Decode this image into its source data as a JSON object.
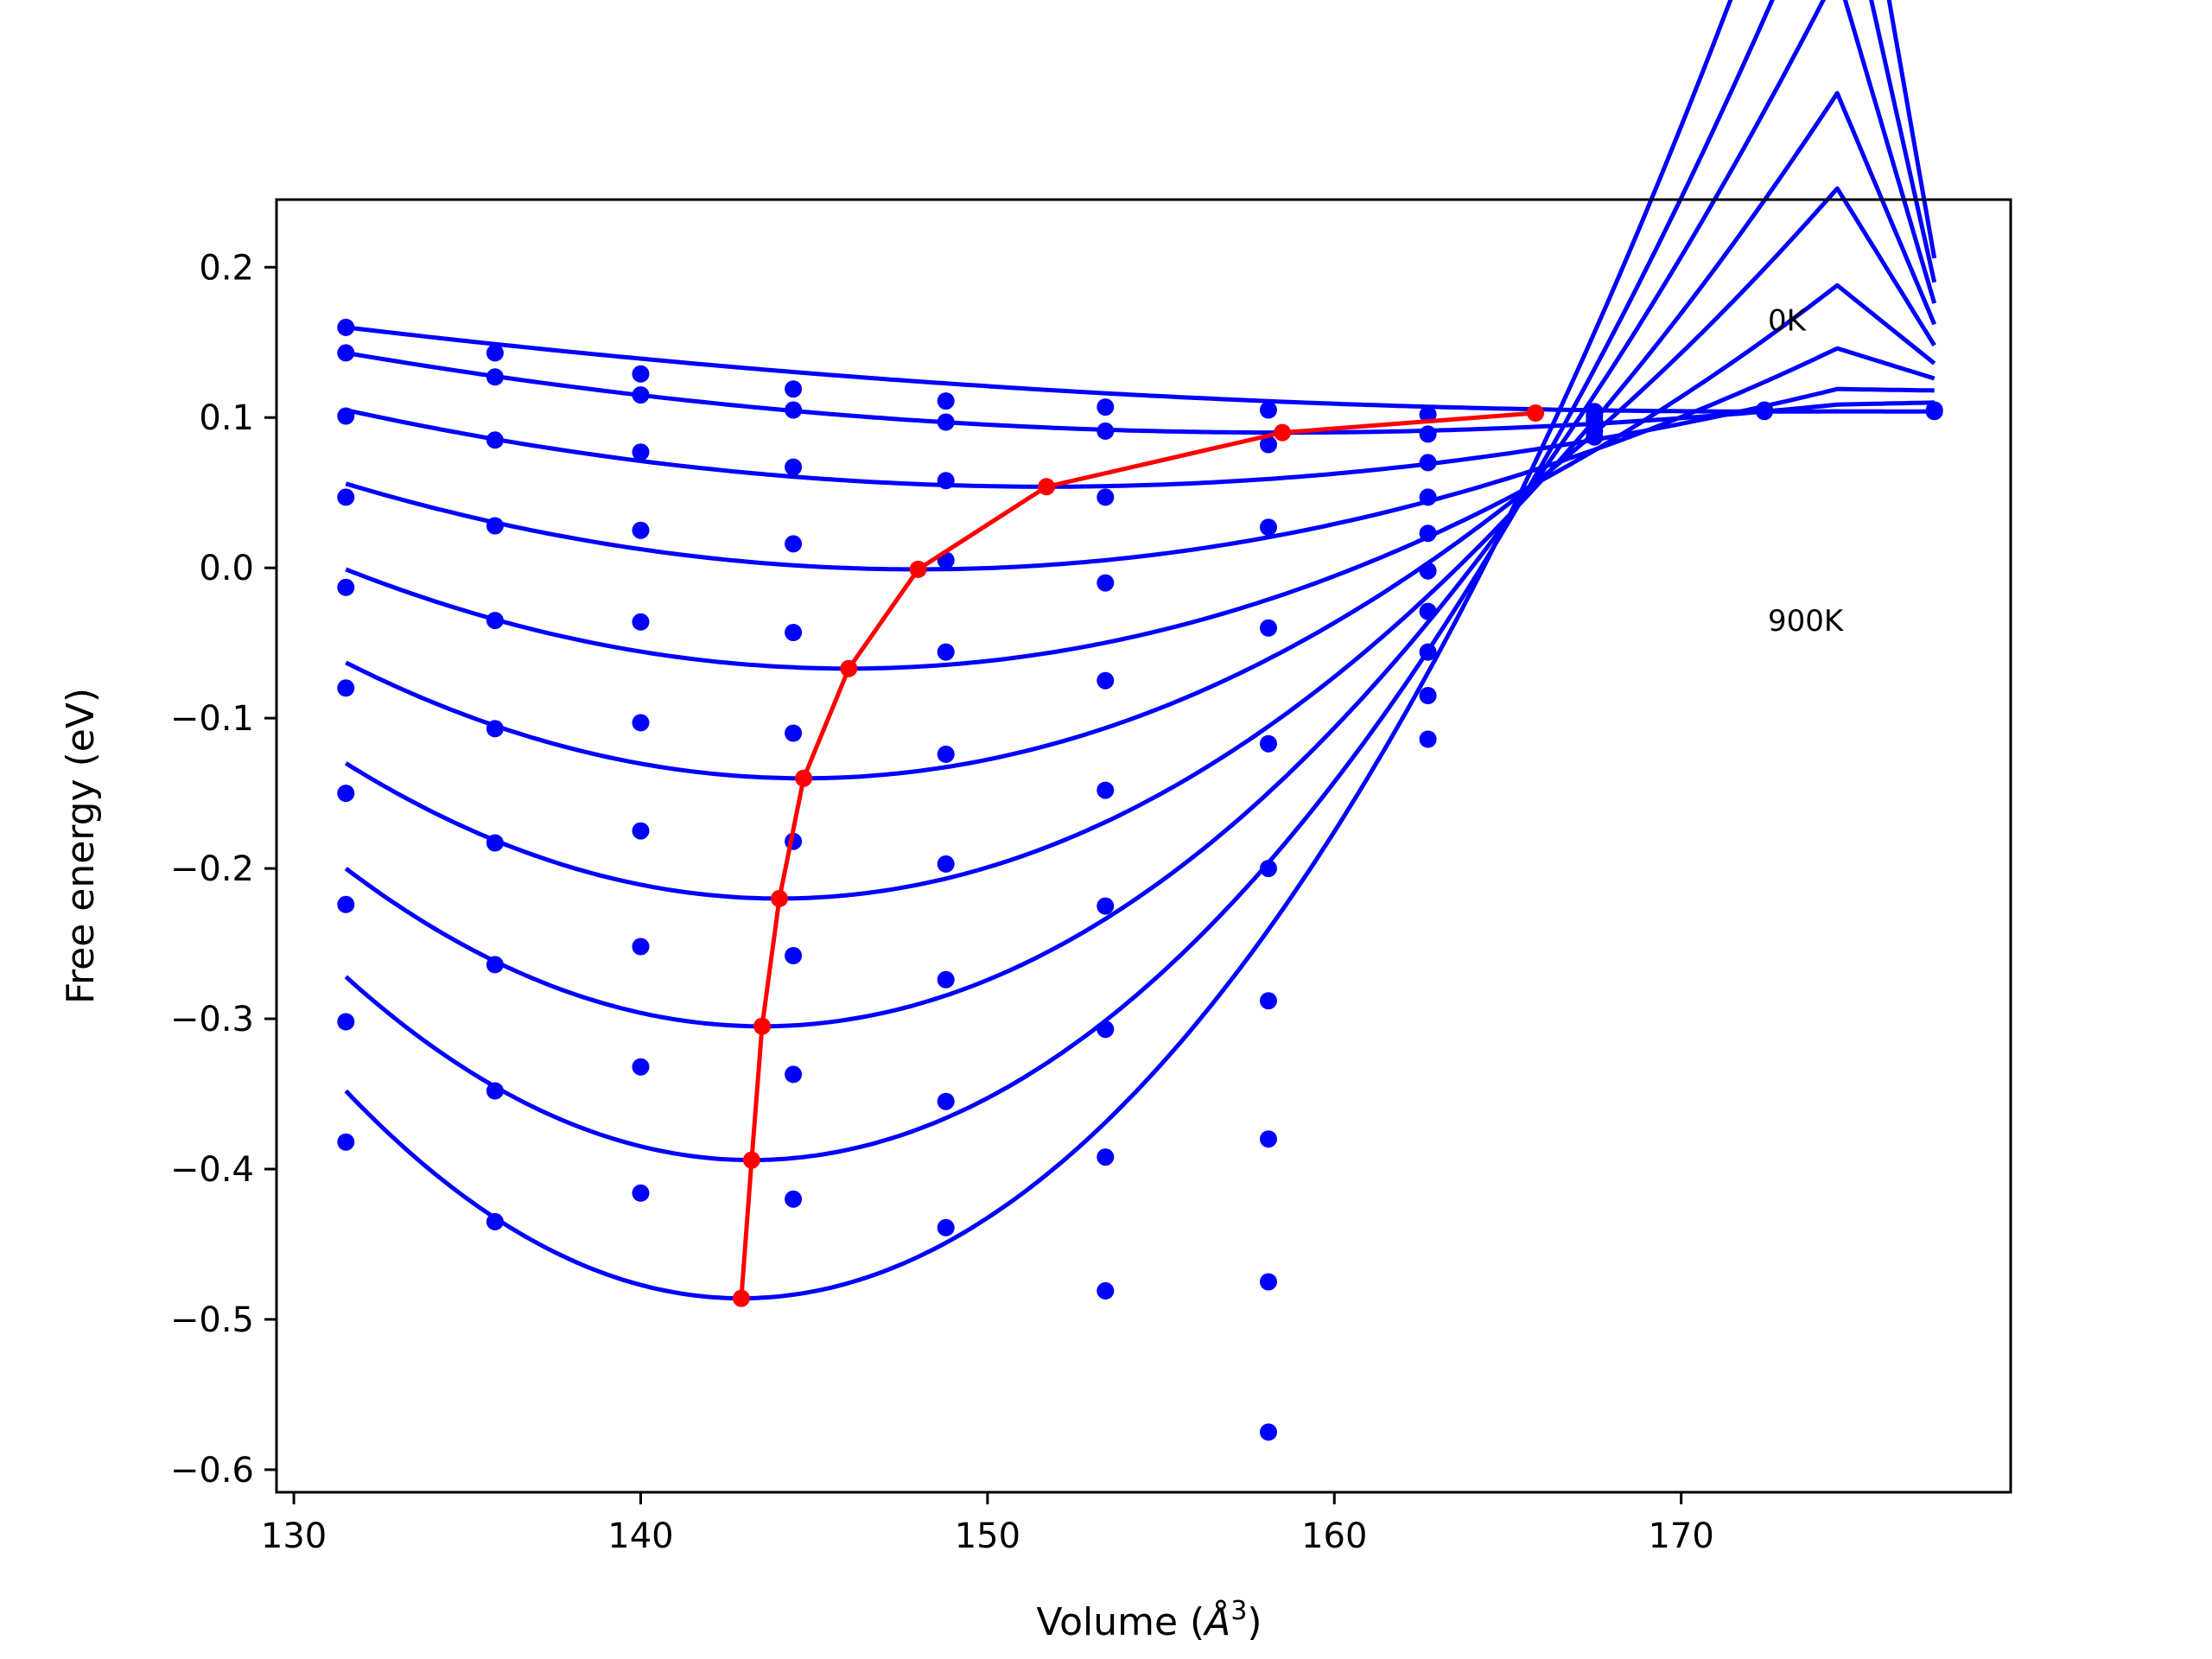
{
  "chart_data": {
    "type": "line",
    "title": "",
    "xlabel": "Volume (",
    "xlabel_symbol": "Å",
    "xlabel_exp": "3",
    "xlabel_close": ")",
    "ylabel": "Free energy (eV)",
    "xlim": [
      129.5,
      179.5
    ],
    "ylim": [
      -0.615,
      0.245
    ],
    "xticks": [
      130,
      140,
      150,
      160,
      170
    ],
    "xtick_labels": [
      "130",
      "140",
      "150",
      "160",
      "170"
    ],
    "yticks": [
      0.2,
      0.1,
      0.0,
      -0.1,
      -0.2,
      -0.3,
      -0.4,
      -0.5,
      -0.6
    ],
    "ytick_labels": [
      "0.2",
      "0.1",
      "0.0",
      "−0.1",
      "−0.2",
      "−0.3",
      "−0.4",
      "−0.5",
      "−0.6"
    ],
    "annotations": [
      {
        "text": "0K",
        "x": 172.5,
        "y": 0.158
      },
      {
        "text": "900K",
        "x": 172.5,
        "y": -0.042
      }
    ],
    "grid": false,
    "colors": {
      "fit_curves": "#0000ff",
      "points": "#0000ff",
      "minimum_path": "#ff0000"
    },
    "x_range": [
      131.5,
      177.3
    ],
    "fit_curves": [
      {
        "v0": 174.5,
        "f0": 0.1,
        "E": [
          172.5,
          0.104
        ],
        "V": [
          131.5,
          0.16
        ]
      },
      {
        "v0": 174.5,
        "f0": 0.1,
        "E": [
          158.5,
          0.09
        ],
        "V": [
          131.5,
          0.143
        ]
      },
      {
        "v0": 174.5,
        "f0": 0.1,
        "E": [
          151.7,
          0.054
        ],
        "V": [
          131.5,
          0.105
        ]
      },
      {
        "v0": 174.5,
        "f0": 0.1,
        "E": [
          148.0,
          -0.001
        ],
        "V": [
          131.5,
          0.056
        ]
      },
      {
        "v0": 174.5,
        "f0": 0.1,
        "E": [
          146.0,
          -0.067
        ],
        "V": [
          131.5,
          -0.001
        ]
      },
      {
        "v0": 174.5,
        "f0": 0.1,
        "E": [
          144.7,
          -0.14
        ],
        "V": [
          131.5,
          -0.063
        ]
      },
      {
        "v0": 174.5,
        "f0": 0.1,
        "E": [
          144.0,
          -0.22
        ],
        "V": [
          131.5,
          -0.13
        ]
      },
      {
        "v0": 174.5,
        "f0": 0.1,
        "E": [
          143.5,
          -0.305
        ],
        "V": [
          131.5,
          -0.2
        ]
      },
      {
        "v0": 174.5,
        "f0": 0.1,
        "E": [
          143.2,
          -0.394
        ],
        "V": [
          131.5,
          -0.272
        ]
      },
      {
        "v0": 174.5,
        "f0": 0.1,
        "E": [
          142.9,
          -0.486
        ],
        "V": [
          131.5,
          -0.348
        ]
      }
    ],
    "fan_endpoints": [
      0.104,
      0.11,
      0.118,
      0.126,
      0.136,
      0.148,
      0.162,
      0.176,
      0.19,
      0.206
    ],
    "minimum_path": {
      "x": [
        142.9,
        143.2,
        143.5,
        144.0,
        144.7,
        146.0,
        148.0,
        151.7,
        158.5,
        165.8
      ],
      "y": [
        -0.486,
        -0.394,
        -0.305,
        -0.22,
        -0.14,
        -0.067,
        -0.001,
        0.054,
        0.09,
        0.103
      ]
    },
    "data_points": [
      {
        "x": 131.5,
        "y": [
          0.16,
          0.143,
          0.101,
          0.047,
          -0.013,
          -0.08,
          -0.15,
          -0.224,
          -0.302,
          -0.382
        ]
      },
      {
        "x": 135.8,
        "y": [
          0.143,
          0.127,
          0.085,
          0.028,
          -0.035,
          -0.107,
          -0.183,
          -0.264,
          -0.348,
          -0.435
        ]
      },
      {
        "x": 140.0,
        "y": [
          0.129,
          0.115,
          0.077,
          0.025,
          -0.036,
          -0.103,
          -0.175,
          -0.252,
          -0.332,
          -0.416
        ]
      },
      {
        "x": 144.4,
        "y": [
          0.119,
          0.105,
          0.067,
          0.016,
          -0.043,
          -0.11,
          -0.182,
          -0.258,
          -0.337,
          -0.42
        ]
      },
      {
        "x": 148.8,
        "y": [
          0.111,
          0.097,
          0.058,
          0.005,
          -0.056,
          -0.124,
          -0.197,
          -0.274,
          -0.355,
          -0.439
        ]
      },
      {
        "x": 153.4,
        "y": [
          0.107,
          0.091,
          0.047,
          -0.01,
          -0.075,
          -0.148,
          -0.225,
          -0.307,
          -0.392,
          -0.481
        ]
      },
      {
        "x": 158.1,
        "y": [
          0.105,
          0.082,
          0.027,
          -0.04,
          -0.117,
          -0.2,
          -0.288,
          -0.38,
          -0.475,
          -0.575
        ]
      },
      {
        "x": 162.7,
        "y": [
          0.102,
          0.089,
          0.07,
          0.047,
          0.023,
          -0.002,
          -0.029,
          -0.056,
          -0.085,
          -0.114
        ]
      },
      {
        "x": 167.5,
        "y": [
          0.104,
          0.101,
          0.098,
          0.095,
          0.091,
          0.087
        ]
      },
      {
        "x": 172.4,
        "y": [
          0.105,
          0.104
        ]
      },
      {
        "x": 177.3,
        "y": [
          0.104,
          0.105
        ]
      }
    ]
  }
}
